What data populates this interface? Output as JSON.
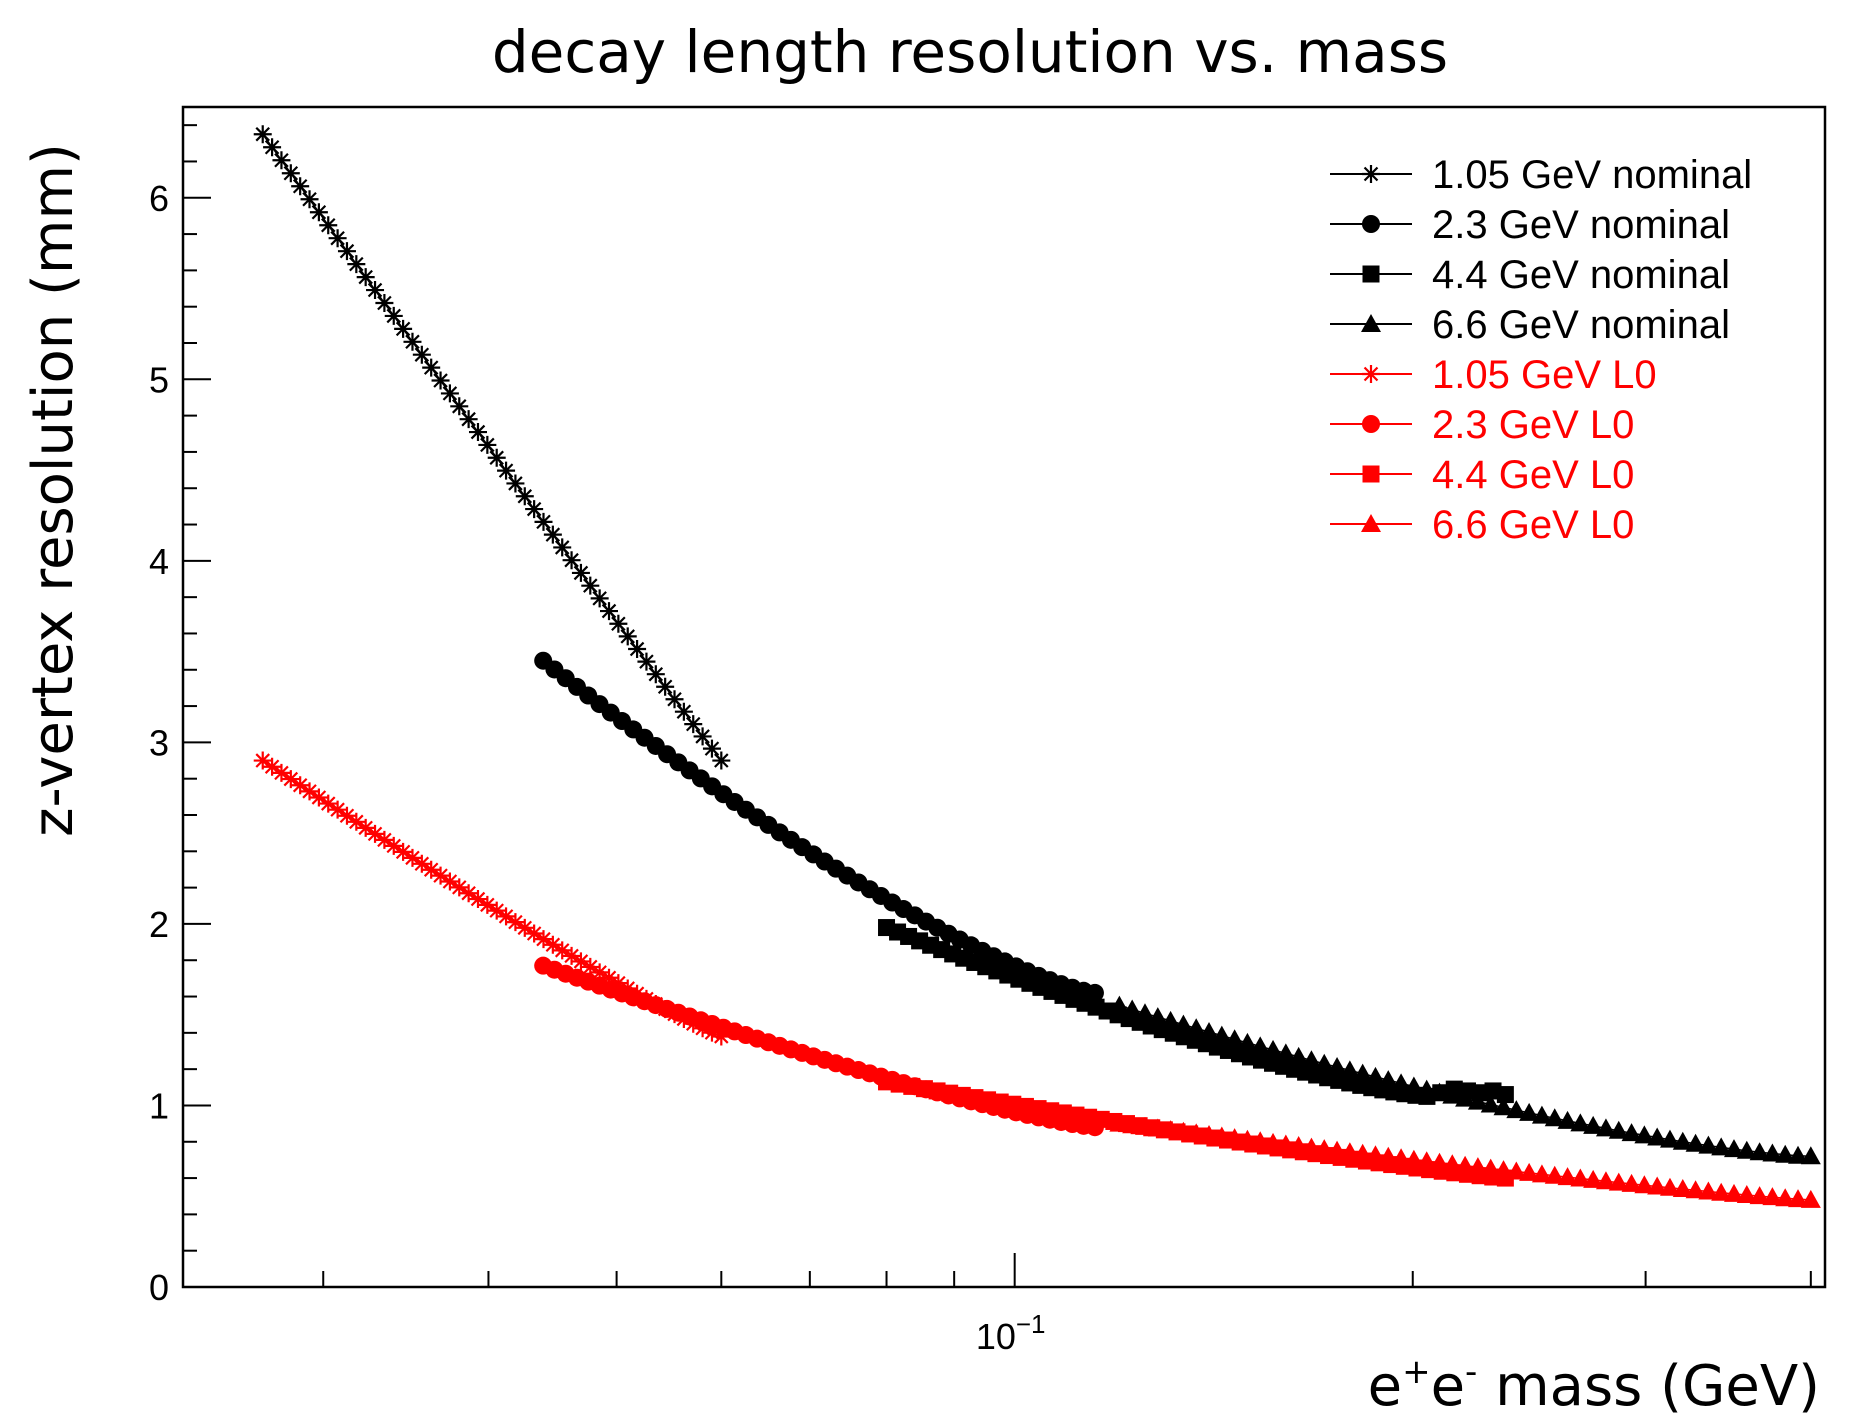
{
  "chart_data": {
    "type": "scatter",
    "title": "decay length resolution vs. mass",
    "xlabel": {
      "e": "e",
      "plus": "+",
      "e2": "e",
      "minus": "-",
      "rest": " mass (GeV)"
    },
    "ylabel": "z-vertex resolution (mm)",
    "x_scale": "log",
    "xlim": [
      0.0235,
      0.41
    ],
    "ylim": [
      0,
      6.5
    ],
    "x_tick_label": {
      "base": "10",
      "exp": "−1"
    },
    "y_ticks": [
      "0",
      "1",
      "2",
      "3",
      "4",
      "5",
      "6"
    ],
    "legend_position": "top-right",
    "series": [
      {
        "name": "1.05 GeV nominal",
        "color": "#000000",
        "marker": "star",
        "x_range": [
          0.027,
          0.06
        ],
        "y_range": [
          6.35,
          2.9
        ],
        "power": 0.98,
        "n": 50
      },
      {
        "name": "2.3 GeV nominal",
        "color": "#000000",
        "marker": "circle",
        "x_range": [
          0.044,
          0.115
        ],
        "y_range": [
          3.45,
          1.62
        ],
        "power": 0.75,
        "n": 50
      },
      {
        "name": "4.4 GeV nominal",
        "color": "#000000",
        "marker": "square",
        "x_range": [
          0.08,
          0.205
        ],
        "y_range": [
          1.98,
          1.05
        ],
        "power": 0.75,
        "n": 50,
        "tail_x": [
          0.21,
          0.215,
          0.22,
          0.225,
          0.23,
          0.235
        ],
        "tail_y": [
          1.07,
          1.09,
          1.08,
          1.07,
          1.08,
          1.06
        ]
      },
      {
        "name": "6.6 GeV nominal",
        "color": "#000000",
        "marker": "triangle",
        "x_range": [
          0.12,
          0.4
        ],
        "y_range": [
          1.55,
          0.72
        ],
        "power": 0.7,
        "n": 55
      },
      {
        "name": "1.05 GeV L0",
        "color": "#ff0000",
        "marker": "star",
        "x_range": [
          0.027,
          0.06
        ],
        "y_range": [
          2.9,
          1.38
        ],
        "power": 0.9,
        "n": 50
      },
      {
        "name": "2.3 GeV L0",
        "color": "#ff0000",
        "marker": "circle",
        "x_range": [
          0.044,
          0.115
        ],
        "y_range": [
          1.77,
          0.88
        ],
        "power": 0.8,
        "n": 50
      },
      {
        "name": "4.4 GeV L0",
        "color": "#ff0000",
        "marker": "square",
        "x_range": [
          0.08,
          0.235
        ],
        "y_range": [
          1.13,
          0.6
        ],
        "power": 0.85,
        "n": 50
      },
      {
        "name": "6.6 GeV L0",
        "color": "#ff0000",
        "marker": "triangle",
        "x_range": [
          0.12,
          0.4
        ],
        "y_range": [
          0.9,
          0.48
        ],
        "power": 0.85,
        "n": 55
      }
    ]
  }
}
